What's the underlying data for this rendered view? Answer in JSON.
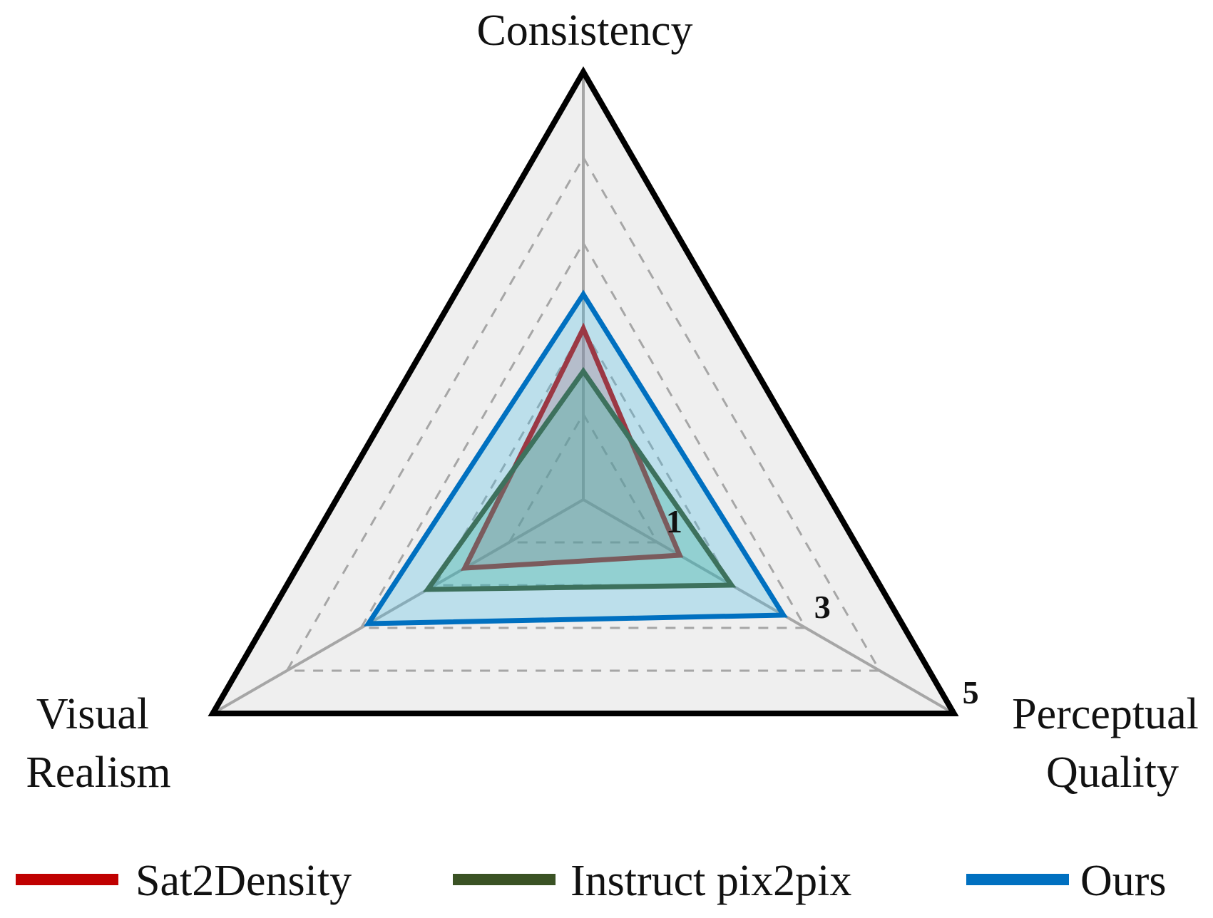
{
  "chart_data": {
    "type": "radar",
    "axes": [
      "Consistency",
      "Perceptual Quality",
      "Visual Realism"
    ],
    "axis_labels": {
      "top": "Consistency",
      "right_line1": "Perceptual",
      "right_line2": "Quality",
      "left_line1": "Visual",
      "left_line2": "Realism"
    },
    "r_range": [
      0,
      5
    ],
    "grid_levels": [
      1,
      2,
      3,
      4
    ],
    "tick_labels": [
      {
        "value": 1,
        "text": "1"
      },
      {
        "value": 3,
        "text": "3"
      },
      {
        "value": 5,
        "text": "5"
      }
    ],
    "series": [
      {
        "name": "Sat2Density",
        "color": "#c00000",
        "fill": "rgba(210,80,90,0.30)",
        "values": [
          2.0,
          1.3,
          1.6
        ]
      },
      {
        "name": "Instruct pix2pix",
        "color": "#3a5224",
        "fill": "rgba(40,170,120,0.30)",
        "values": [
          1.5,
          2.0,
          2.1
        ]
      },
      {
        "name": "Ours",
        "color": "#0070c0",
        "fill": "rgba(70,185,225,0.30)",
        "values": [
          2.4,
          2.7,
          2.9
        ]
      }
    ],
    "legend_position": "bottom",
    "background": "#efefef",
    "outer_border": "#000000",
    "grid_color": "#a6a6a6"
  }
}
